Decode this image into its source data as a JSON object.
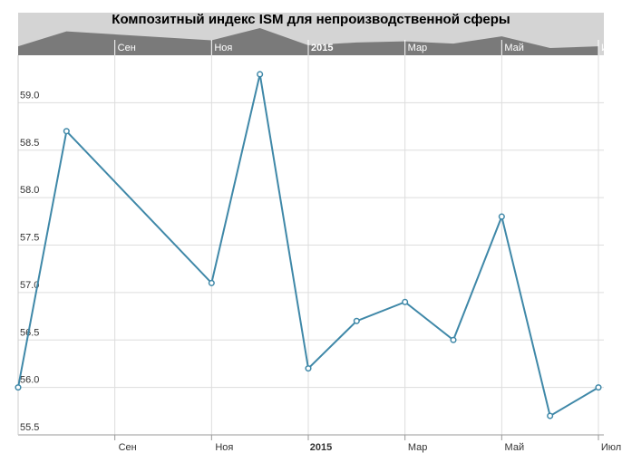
{
  "chart_data": {
    "type": "line",
    "title": "Композитный индекс ISM для непроизводственной сферы",
    "x": [
      "2014-07",
      "2014-08",
      "2014-11",
      "2014-12",
      "2015-01",
      "2015-02",
      "2015-03",
      "2015-04",
      "2015-05",
      "2015-06",
      "2015-07"
    ],
    "series": [
      {
        "name": "ISM",
        "color": "#3f88a8",
        "values": [
          56.0,
          58.7,
          57.1,
          59.3,
          56.2,
          56.7,
          56.9,
          56.5,
          57.8,
          55.7,
          56.0
        ]
      }
    ],
    "xlim": [
      "2014-07",
      "2015-07"
    ],
    "xticks": [
      {
        "value": "2014-09",
        "label": "Сен"
      },
      {
        "value": "2014-11",
        "label": "Ноя"
      },
      {
        "value": "2015-01",
        "label": "2015"
      },
      {
        "value": "2015-03",
        "label": "Мар"
      },
      {
        "value": "2015-05",
        "label": "Май"
      },
      {
        "value": "2015-07",
        "label": "Июл"
      }
    ],
    "ylim": [
      55.5,
      59.5
    ],
    "yticks": [
      {
        "value": 55.5,
        "label": "55.5"
      },
      {
        "value": 56,
        "label": "56.0"
      },
      {
        "value": 56.5,
        "label": "56.5"
      },
      {
        "value": 57,
        "label": "57.0"
      },
      {
        "value": 57.5,
        "label": "57.5"
      },
      {
        "value": 58,
        "label": "58.0"
      },
      {
        "value": 58.5,
        "label": "58.5"
      },
      {
        "value": 59,
        "label": "59.0"
      }
    ],
    "grid": true
  }
}
